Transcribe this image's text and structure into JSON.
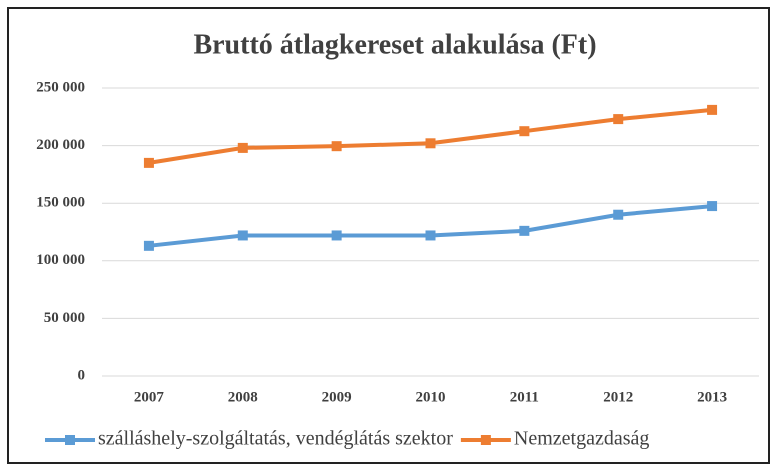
{
  "chart_data": {
    "type": "line",
    "title": "Bruttó átlagkereset alakulása (Ft)",
    "categories": [
      "2007",
      "2008",
      "2009",
      "2010",
      "2011",
      "2012",
      "2013"
    ],
    "series": [
      {
        "name": "szálláshely-szolgáltatás, vendéglátás szektor",
        "color": "#5b9bd5",
        "values": [
          113000,
          122000,
          122000,
          122000,
          126000,
          140000,
          147500
        ]
      },
      {
        "name": "Nemzetgazdaság",
        "color": "#ed7d31",
        "values": [
          185000,
          198000,
          199500,
          202000,
          212500,
          223000,
          231000
        ]
      }
    ],
    "ylim": [
      0,
      250000
    ],
    "yticks": [
      0,
      {
        "value": 50000,
        "label": "50 000"
      },
      {
        "value": 100000,
        "label": "100 000"
      },
      {
        "value": 150000,
        "label": "150 000"
      },
      {
        "value": 200000,
        "label": "200 000"
      },
      {
        "value": 250000,
        "label": "250 000"
      }
    ],
    "grid": true,
    "legend": "bottom"
  }
}
